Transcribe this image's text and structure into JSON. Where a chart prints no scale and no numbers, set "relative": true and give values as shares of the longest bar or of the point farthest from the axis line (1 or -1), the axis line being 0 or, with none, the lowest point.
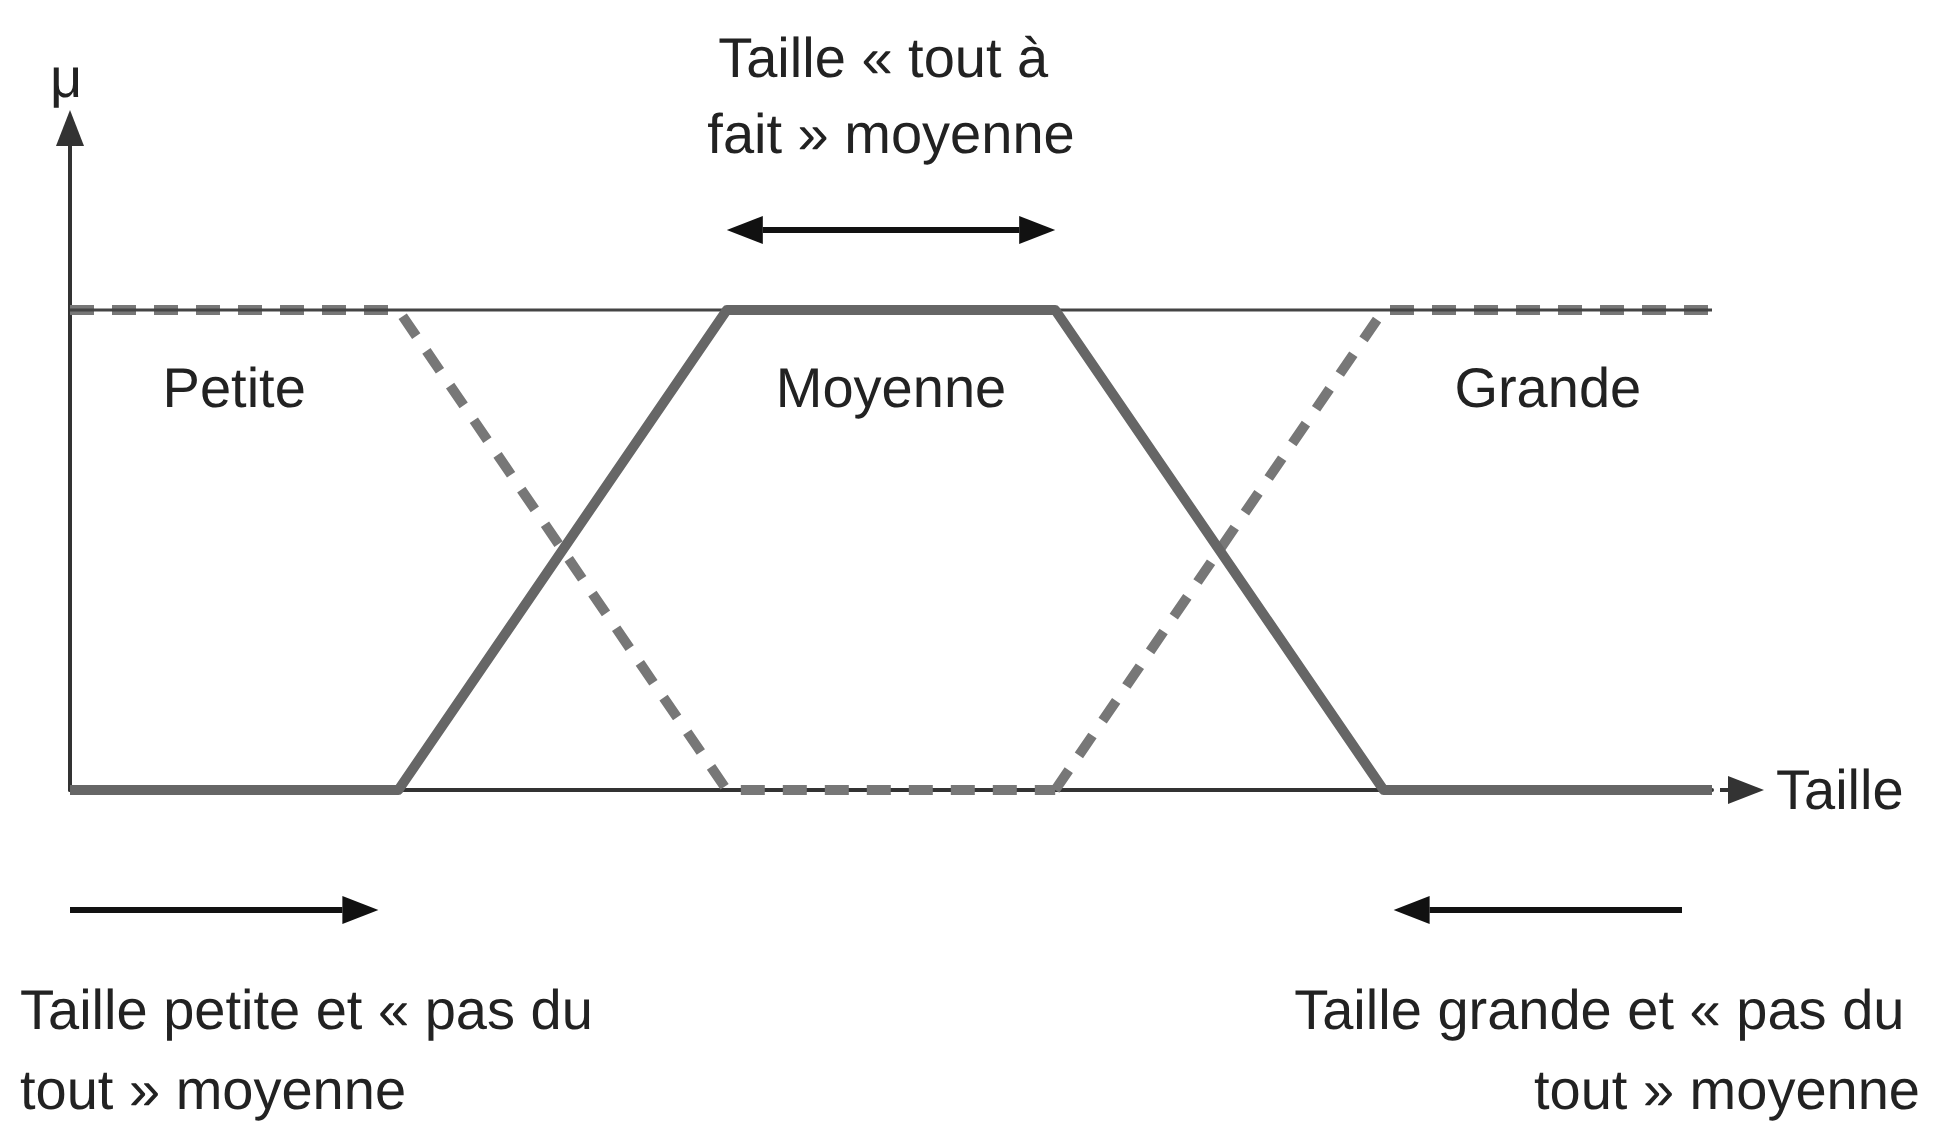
{
  "chart_data": {
    "type": "line",
    "relative": true,
    "xlabel": "Taille",
    "ylabel": "μ",
    "categories": [
      null,
      null,
      null,
      null,
      null,
      null
    ],
    "series": [
      {
        "name": "Petite",
        "color": "#777777",
        "line_style": "dashed",
        "values": [
          1,
          1,
          0,
          0,
          null,
          null
        ]
      },
      {
        "name": "Moyenne",
        "color": "#666666",
        "line_style": "solid",
        "values": [
          0,
          0,
          1,
          1,
          0,
          0
        ]
      },
      {
        "name": "Grande",
        "color": "#777777",
        "line_style": "dashed",
        "values": [
          null,
          null,
          null,
          0,
          1,
          1
        ]
      }
    ],
    "ref_lines": [
      {
        "axis": "y",
        "value": 1,
        "color": "#444444",
        "line_style": "solid"
      }
    ],
    "annotations": [
      "Taille « tout à fait » moyenne",
      "Taille petite et « pas du tout » moyenne",
      "Taille grande et « pas du tout » moyenne"
    ],
    "marker": "none",
    "grid": false,
    "legend": false
  }
}
